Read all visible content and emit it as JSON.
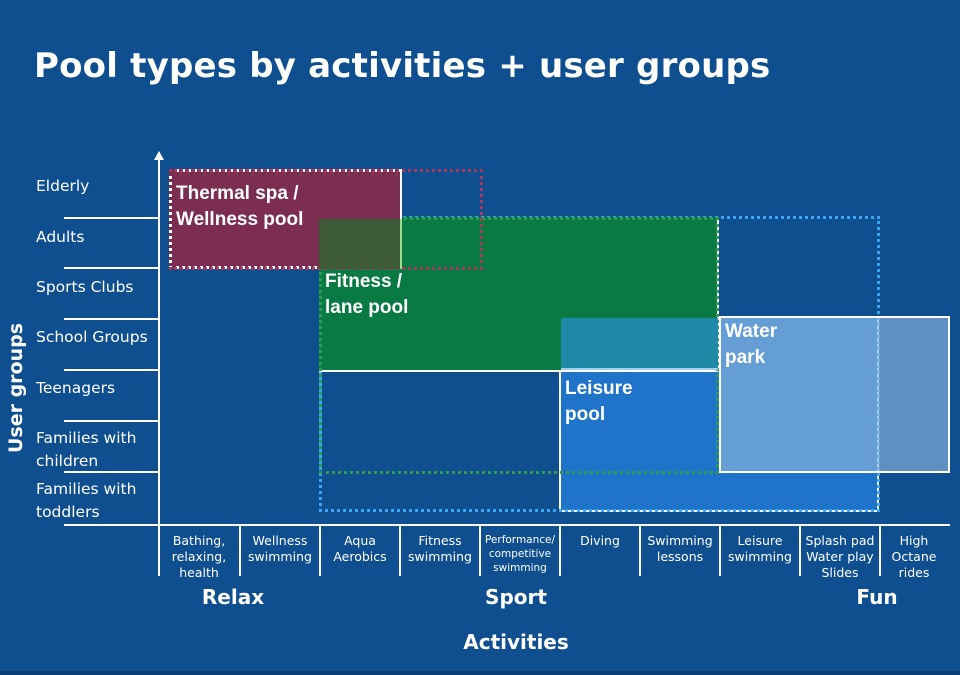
{
  "title": "Pool types by activities + user groups",
  "y_axis_label": "User groups",
  "x_axis_label": "Activities",
  "user_groups": [
    "Elderly",
    "Adults",
    "Sports Clubs",
    "School Groups",
    "Teenagers",
    "Families with children",
    "Families with toddlers"
  ],
  "activities": [
    "Bathing, relaxing, health",
    "Wellness swimming",
    "Aqua Aerobics",
    "Fitness swimming",
    "Performance/ competitive swimming",
    "Diving",
    "Swimming lessons",
    "Leisure swimming",
    "Splash pad Water play Slides",
    "High Octane rides"
  ],
  "activity_groups": [
    "Relax",
    "Sport",
    "Fun"
  ],
  "pools": {
    "thermal": {
      "line1": "Thermal spa /",
      "line2": "Wellness pool"
    },
    "fitness": {
      "line1": "Fitness /",
      "line2": "lane pool"
    },
    "leisure": {
      "line1": "Leisure",
      "line2": "pool"
    },
    "water": {
      "line1": "Water",
      "line2": "park"
    }
  },
  "colors": {
    "background": "#0f4e8f",
    "thermal": "#7b2d52",
    "fitness": "#0a7a45",
    "leisure": "#1f74c9",
    "water_park": "#6c9ec8"
  }
}
